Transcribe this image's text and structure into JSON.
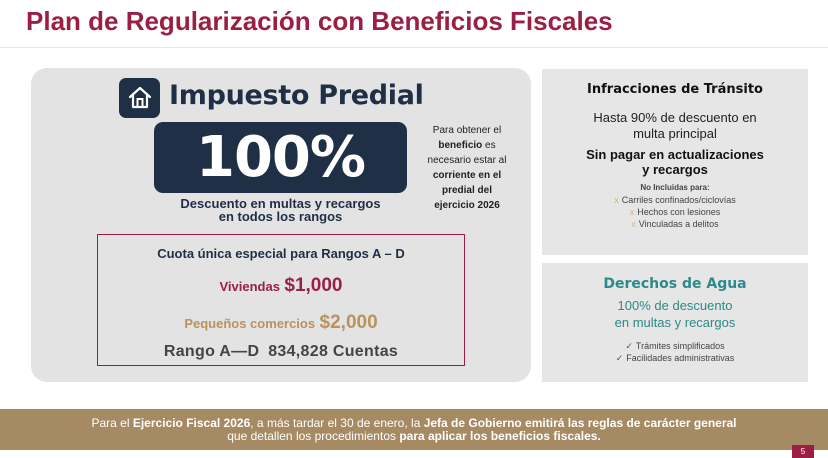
{
  "title": "Plan de Regularización con Beneficios Fiscales",
  "predial": {
    "heading": "Impuesto Predial",
    "percent": "100%",
    "desc_line1": "Descuento en multas y recargos",
    "desc_line2": "en todos los rangos",
    "note": {
      "l1": "Para obtener el",
      "l2_bold": "beneficio",
      "l2_rest": " es",
      "l3": "necesario estar al",
      "l4": "corriente en el",
      "l5": "predial del",
      "l6": "ejercicio 2026"
    },
    "cuota": {
      "title": "Cuota única especial para Rangos A – D",
      "viviendas_label": "Viviendas",
      "viviendas_amount": "$1,000",
      "pequenos_label": "Pequeños comercios",
      "pequenos_amount": "$2,000",
      "rango_label": "Rango A—D",
      "rango_count": "834,828 Cuentas"
    }
  },
  "transito": {
    "title": "Infracciones de Tránsito",
    "desc_line1": "Hasta 90% de descuento en",
    "desc_line2": "multa principal",
    "sin_line1": "Sin pagar en actualizaciones",
    "sin_line2": "y recargos",
    "no_incluidas": "No Incluidas para:",
    "items": [
      "Carriles confinados/ciclovías",
      "Hechos con lesiones",
      "Vinculadas a delitos"
    ]
  },
  "agua": {
    "title": "Derechos de Agua",
    "desc_line1": "100% de descuento",
    "desc_line2": "en multas y recargos",
    "items": [
      "Trámites simplificados",
      "Facilidades administrativas"
    ]
  },
  "footer": {
    "p1": "Para el ",
    "p2": "Ejercicio Fiscal 2026",
    "p3": ", a más tardar el 30 de enero, la ",
    "p4": "Jefa de Gobierno emitirá las reglas de carácter general",
    "p5": "que detallen los procedimientos ",
    "p6": "para aplicar los beneficios fiscales."
  },
  "page_number": "5",
  "colors": {
    "brand": "#9b1f45",
    "navy": "#1f2f45",
    "gold": "#b8935e",
    "teal": "#2b8a8a",
    "footer_bg": "#a58a64"
  },
  "icons": {
    "house": "house-icon",
    "x": "x-mark-icon",
    "check": "check-icon"
  }
}
